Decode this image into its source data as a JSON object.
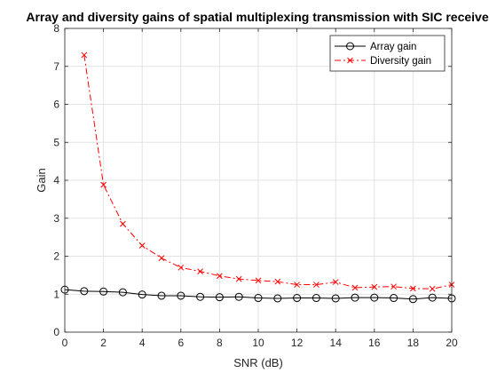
{
  "chart_data": {
    "type": "line",
    "title": "Array and diversity gains of spatial multiplexing transmission with SIC receive",
    "xlabel": "SNR (dB)",
    "ylabel": "Gain",
    "xlim": [
      0,
      20
    ],
    "ylim": [
      0,
      8
    ],
    "xticks": [
      0,
      2,
      4,
      6,
      8,
      10,
      12,
      14,
      16,
      18,
      20
    ],
    "yticks": [
      0,
      1,
      2,
      3,
      4,
      5,
      6,
      7,
      8
    ],
    "grid": true,
    "legend_position": "top-right",
    "series": [
      {
        "name": "Array gain",
        "color": "#000000",
        "line_style": "solid",
        "marker": "circle",
        "x": [
          0,
          1,
          2,
          3,
          4,
          5,
          6,
          7,
          8,
          9,
          10,
          11,
          12,
          13,
          14,
          15,
          16,
          17,
          18,
          19,
          20
        ],
        "y": [
          1.12,
          1.08,
          1.07,
          1.05,
          0.99,
          0.96,
          0.96,
          0.93,
          0.92,
          0.93,
          0.9,
          0.89,
          0.9,
          0.9,
          0.89,
          0.91,
          0.91,
          0.9,
          0.87,
          0.91,
          0.89
        ]
      },
      {
        "name": "Diversity gain",
        "color": "#ff0000",
        "line_style": "dash-dot",
        "marker": "x",
        "x": [
          1,
          2,
          3,
          4,
          5,
          6,
          7,
          8,
          9,
          10,
          11,
          12,
          13,
          14,
          15,
          16,
          17,
          18,
          19,
          20
        ],
        "y": [
          7.3,
          3.88,
          2.85,
          2.28,
          1.95,
          1.7,
          1.6,
          1.48,
          1.4,
          1.36,
          1.33,
          1.25,
          1.25,
          1.32,
          1.17,
          1.19,
          1.2,
          1.15,
          1.14,
          1.25
        ]
      }
    ]
  }
}
